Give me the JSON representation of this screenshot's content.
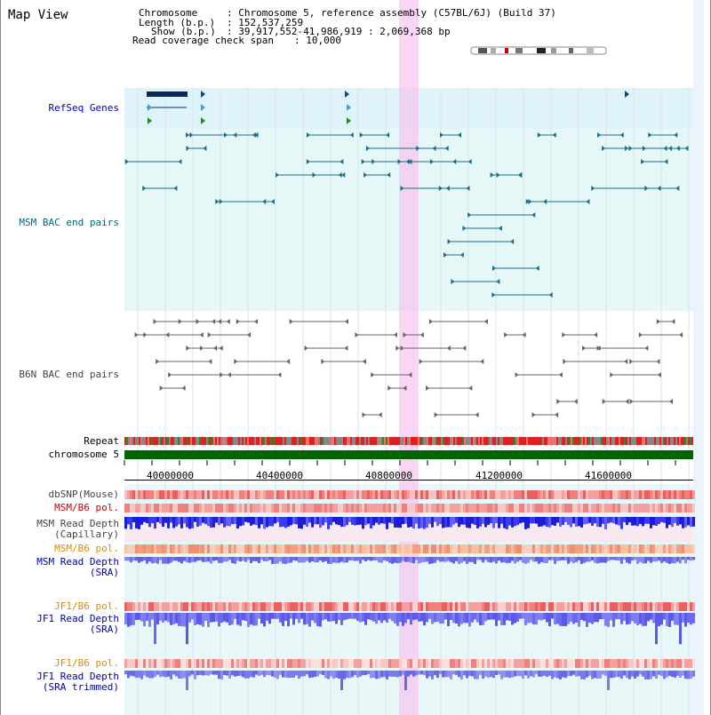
{
  "title": "Map View",
  "info": {
    "chromosome_label": "Chromosome",
    "chromosome_value": ": Chromosome 5, reference assembly (C57BL/6J) (Build 37)",
    "length_label": "Length (b.p.)",
    "length_value": ": 152,537,259",
    "show_label": "Show (b.p.)",
    "show_value": ": 39,917,552-41,986,919 : 2,069,368 bp",
    "coverage_label": "Read coverage check span",
    "coverage_value": ": 10,000"
  },
  "tracks": {
    "refseq": "RefSeq Genes",
    "msm_bac": "MSM BAC end pairs",
    "b6n_bac": "B6N BAC end pairs",
    "repeat": "Repeat",
    "chromosome": "chromosome 5",
    "dbsnp": "dbSNP(Mouse)",
    "msm_b6_pol_1": "MSM/B6 pol.",
    "msm_depth_cap_1": "MSM Read Depth",
    "msm_depth_cap_2": "(Capillary)",
    "msm_b6_pol_2": "MSM/B6 pol.",
    "msm_depth_sra_1": "MSM Read Depth",
    "msm_depth_sra_2": "(SRA)",
    "jf1_b6_pol_1": "JF1/B6 pol.",
    "jf1_depth_sra_1": "JF1 Read Depth",
    "jf1_depth_sra_2": "(SRA)",
    "jf1_b6_pol_2": "JF1/B6 pol.",
    "jf1_depth_trim_1": "JF1 Read Depth",
    "jf1_depth_trim_2": "(SRA trimmed)"
  },
  "axis": {
    "ticks": [
      "40000000",
      "40400000",
      "40800000",
      "41200000",
      "41600000"
    ]
  },
  "colors": {
    "refseq_label": "#0000cc",
    "msm_label": "#006677",
    "b6n_label": "#444444",
    "sra_label": "#0000aa",
    "pol_label": "#cc0000",
    "jf_pol_label": "#e08a00",
    "highlight": "#f5c8f0",
    "chrom_bar": "#006400"
  }
}
